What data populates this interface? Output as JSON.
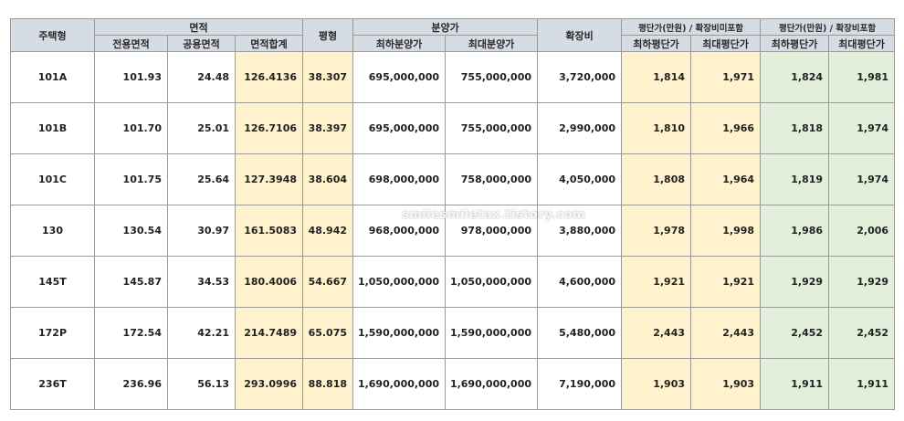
{
  "header": {
    "type": "주택형",
    "area": "면적",
    "area_exclusive": "전용면적",
    "area_common": "공용면적",
    "area_total": "면적합계",
    "pyeong": "평형",
    "price": "분양가",
    "price_min": "최하분양가",
    "price_max": "최대분양가",
    "expansion": "확장비",
    "unit_excl": "평단가(만원) / 확장비미포함",
    "unit_incl": "평단가(만원) / 확장비포함",
    "unit_min": "최하평단가",
    "unit_max": "최대평단가"
  },
  "rows": [
    {
      "type": "101A",
      "area_exclusive": "101.93",
      "area_common": "24.48",
      "area_total": "126.4136",
      "pyeong": "38.307",
      "price_min": "695,000,000",
      "price_max": "755,000,000",
      "expansion": "3,720,000",
      "excl_min": "1,814",
      "excl_max": "1,971",
      "incl_min": "1,824",
      "incl_max": "1,981"
    },
    {
      "type": "101B",
      "area_exclusive": "101.70",
      "area_common": "25.01",
      "area_total": "126.7106",
      "pyeong": "38.397",
      "price_min": "695,000,000",
      "price_max": "755,000,000",
      "expansion": "2,990,000",
      "excl_min": "1,810",
      "excl_max": "1,966",
      "incl_min": "1,818",
      "incl_max": "1,974"
    },
    {
      "type": "101C",
      "area_exclusive": "101.75",
      "area_common": "25.64",
      "area_total": "127.3948",
      "pyeong": "38.604",
      "price_min": "698,000,000",
      "price_max": "758,000,000",
      "expansion": "4,050,000",
      "excl_min": "1,808",
      "excl_max": "1,964",
      "incl_min": "1,819",
      "incl_max": "1,974"
    },
    {
      "type": "130",
      "area_exclusive": "130.54",
      "area_common": "30.97",
      "area_total": "161.5083",
      "pyeong": "48.942",
      "price_min": "968,000,000",
      "price_max": "978,000,000",
      "expansion": "3,880,000",
      "excl_min": "1,978",
      "excl_max": "1,998",
      "incl_min": "1,986",
      "incl_max": "2,006"
    },
    {
      "type": "145T",
      "area_exclusive": "145.87",
      "area_common": "34.53",
      "area_total": "180.4006",
      "pyeong": "54.667",
      "price_min": "1,050,000,000",
      "price_max": "1,050,000,000",
      "expansion": "4,600,000",
      "excl_min": "1,921",
      "excl_max": "1,921",
      "incl_min": "1,929",
      "incl_max": "1,929"
    },
    {
      "type": "172P",
      "area_exclusive": "172.54",
      "area_common": "42.21",
      "area_total": "214.7489",
      "pyeong": "65.075",
      "price_min": "1,590,000,000",
      "price_max": "1,590,000,000",
      "expansion": "5,480,000",
      "excl_min": "2,443",
      "excl_max": "2,443",
      "incl_min": "2,452",
      "incl_max": "2,452"
    },
    {
      "type": "236T",
      "area_exclusive": "236.96",
      "area_common": "56.13",
      "area_total": "293.0996",
      "pyeong": "88.818",
      "price_min": "1,690,000,000",
      "price_max": "1,690,000,000",
      "expansion": "7,190,000",
      "excl_min": "1,903",
      "excl_max": "1,903",
      "incl_min": "1,911",
      "incl_max": "1,911"
    }
  ],
  "watermark": "smilesmiletax.tistory.com",
  "colors": {
    "header_bg": "#d5dce4",
    "highlight_yellow": "#fff2cc",
    "highlight_green": "#e2efda"
  }
}
